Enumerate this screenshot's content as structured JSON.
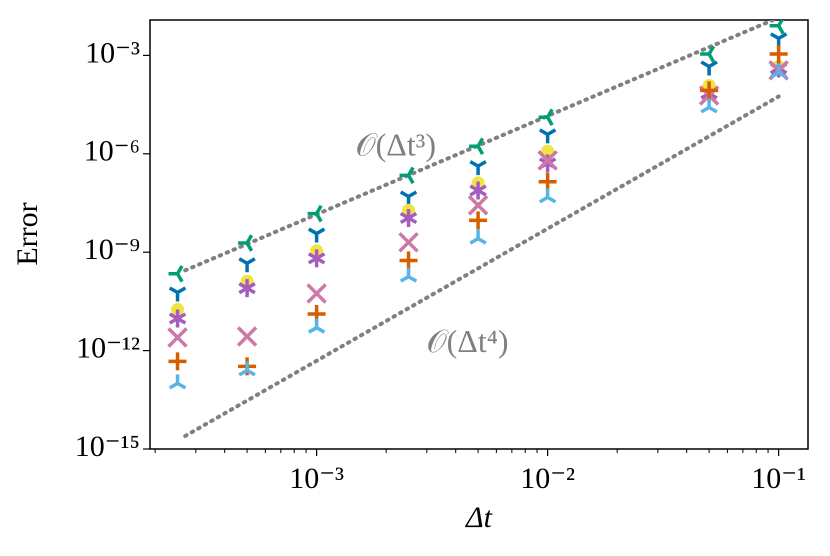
{
  "chart_data": {
    "type": "scatter",
    "xlabel": "Δt",
    "ylabel": "Error",
    "xscale": "log",
    "yscale": "log",
    "minor_ticks": true,
    "xlim": [
      0.00019,
      0.134
    ],
    "ylim": [
      1e-15,
      0.012
    ],
    "xticks": [
      {
        "value": 0.001,
        "label": "10⁻³"
      },
      {
        "value": 0.01,
        "label": "10⁻²"
      },
      {
        "value": 0.1,
        "label": "10⁻¹"
      }
    ],
    "yticks": [
      {
        "value": 1e-15,
        "label": "10⁻¹⁵"
      },
      {
        "value": 1e-12,
        "label": "10⁻¹²"
      },
      {
        "value": 1e-09,
        "label": "10⁻⁹"
      },
      {
        "value": 1e-06,
        "label": "10⁻⁶"
      },
      {
        "value": 0.001,
        "label": "10⁻³"
      }
    ],
    "x": [
      0.00025,
      0.0005,
      0.001,
      0.0025,
      0.005,
      0.01,
      0.05,
      0.1
    ],
    "series": [
      {
        "color": "#009e73",
        "marker": "tri_left",
        "values": [
          2.2e-10,
          1.9e-09,
          1.5e-08,
          2.2e-07,
          1.7e-06,
          1.3e-05,
          0.0011,
          0.008
        ]
      },
      {
        "color": "#0072b2",
        "marker": "tri_down",
        "values": [
          5.9e-11,
          4.6e-10,
          3.7e-09,
          5e-08,
          4.2e-07,
          3.9e-06,
          0.00046,
          0.0033
        ]
      },
      {
        "color": "#f0e442",
        "marker": "point",
        "values": [
          1.8e-11,
          1.3e-10,
          1.1e-09,
          1.9e-08,
          1.3e-07,
          1.2e-06,
          0.00012,
          0.00046
        ]
      },
      {
        "color": "#a65cbf",
        "marker": "star",
        "values": [
          9.5e-12,
          8e-11,
          6.5e-10,
          1.1e-08,
          7.6e-08,
          5.1e-07,
          6.9e-05,
          0.0004
        ]
      },
      {
        "color": "#cc79a7",
        "marker": "x",
        "values": [
          2.5e-12,
          2.7e-12,
          5.5e-11,
          2e-09,
          2.7e-08,
          6.3e-07,
          6e-05,
          0.00035
        ]
      },
      {
        "color": "#d55e00",
        "marker": "plus",
        "values": [
          4.7e-13,
          3.3e-13,
          1.3e-11,
          5.6e-10,
          9.3e-09,
          1.4e-07,
          8.6e-05,
          0.0011
        ]
      },
      {
        "color": "#56b4e9",
        "marker": "tri_up",
        "values": [
          1e-13,
          2.5e-13,
          5e-12,
          1.8e-10,
          2.6e-09,
          4.7e-08,
          2.6e-05,
          0.0003
        ]
      }
    ],
    "reference_lines": [
      {
        "text": "𝒪(Δt³)",
        "color": "#808080",
        "x": [
          0.00027,
          0.112
        ],
        "values": [
          2.8e-10,
          0.02
        ],
        "label_at": [
          0.0022,
          1.5e-06
        ]
      },
      {
        "text": "𝒪(Δt⁴)",
        "color": "#808080",
        "x": [
          0.00027,
          0.1
        ],
        "values": [
          2.5e-15,
          5.6e-05
        ],
        "label_at": [
          0.0045,
          1.5e-12
        ]
      }
    ]
  }
}
